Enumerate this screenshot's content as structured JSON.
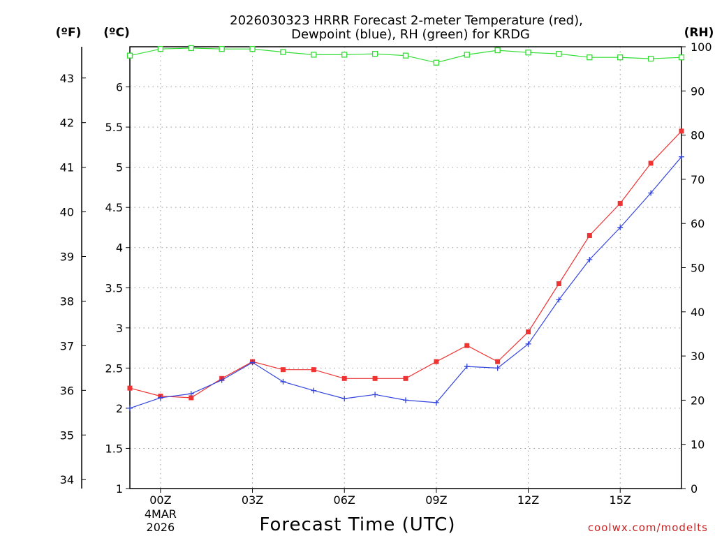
{
  "chart_data": {
    "type": "line",
    "title_line1": "2026030323 HRRR Forecast 2-meter Temperature (red),",
    "title_line2": "Dewpoint (blue), RH (green) for KRDG",
    "xlabel": "Forecast Time (UTC)",
    "credit": "coolwx.com/modelts",
    "axis_units": {
      "fahrenheit": "(ºF)",
      "celsius": "(ºC)",
      "rh": "(RH)"
    },
    "x_hours": [
      -1,
      0,
      1,
      2,
      3,
      4,
      5,
      6,
      7,
      8,
      9,
      10,
      11,
      12,
      13,
      14,
      15,
      16,
      17
    ],
    "xlim": [
      -1,
      17
    ],
    "x_ticks": [
      {
        "h": 0,
        "label": "00Z",
        "sub1": "4MAR",
        "sub2": "2026"
      },
      {
        "h": 3,
        "label": "03Z"
      },
      {
        "h": 6,
        "label": "06Z"
      },
      {
        "h": 9,
        "label": "09Z"
      },
      {
        "h": 12,
        "label": "12Z"
      },
      {
        "h": 15,
        "label": "15Z"
      }
    ],
    "celsius_axis": {
      "ylim": [
        1,
        6.5
      ],
      "ticks": [
        "1",
        "1.5",
        "2",
        "2.5",
        "3",
        "3.5",
        "4",
        "4.5",
        "5",
        "5.5",
        "6"
      ]
    },
    "fahrenheit_axis": {
      "ticks": [
        "34",
        "35",
        "36",
        "37",
        "38",
        "39",
        "40",
        "41",
        "42",
        "43"
      ]
    },
    "rh_axis": {
      "ylim": [
        0,
        100
      ],
      "ticks": [
        "0",
        "10",
        "20",
        "30",
        "40",
        "50",
        "60",
        "70",
        "80",
        "90",
        "100"
      ]
    },
    "series": [
      {
        "name": "Temperature",
        "color": "#ee3333",
        "marker": "square",
        "axis": "celsius",
        "values": [
          2.25,
          2.15,
          2.13,
          2.37,
          2.58,
          2.48,
          2.48,
          2.37,
          2.37,
          2.37,
          2.58,
          2.78,
          2.58,
          2.95,
          3.55,
          4.15,
          4.55,
          5.05,
          5.45
        ]
      },
      {
        "name": "Dewpoint",
        "color": "#3344dd",
        "marker": "plus",
        "axis": "celsius",
        "values": [
          2.0,
          2.13,
          2.18,
          2.35,
          2.57,
          2.33,
          2.22,
          2.12,
          2.17,
          2.1,
          2.07,
          2.52,
          2.5,
          2.8,
          3.35,
          3.85,
          4.25,
          4.68,
          5.13
        ]
      },
      {
        "name": "RH",
        "color": "#33dd33",
        "marker": "open-square",
        "axis": "rh",
        "values": [
          98,
          99.5,
          99.7,
          99.5,
          99.5,
          98.8,
          98.2,
          98.2,
          98.4,
          98,
          96.4,
          98.2,
          99.2,
          98.7,
          98.4,
          97.6,
          97.6,
          97.3,
          97.6
        ]
      }
    ]
  }
}
